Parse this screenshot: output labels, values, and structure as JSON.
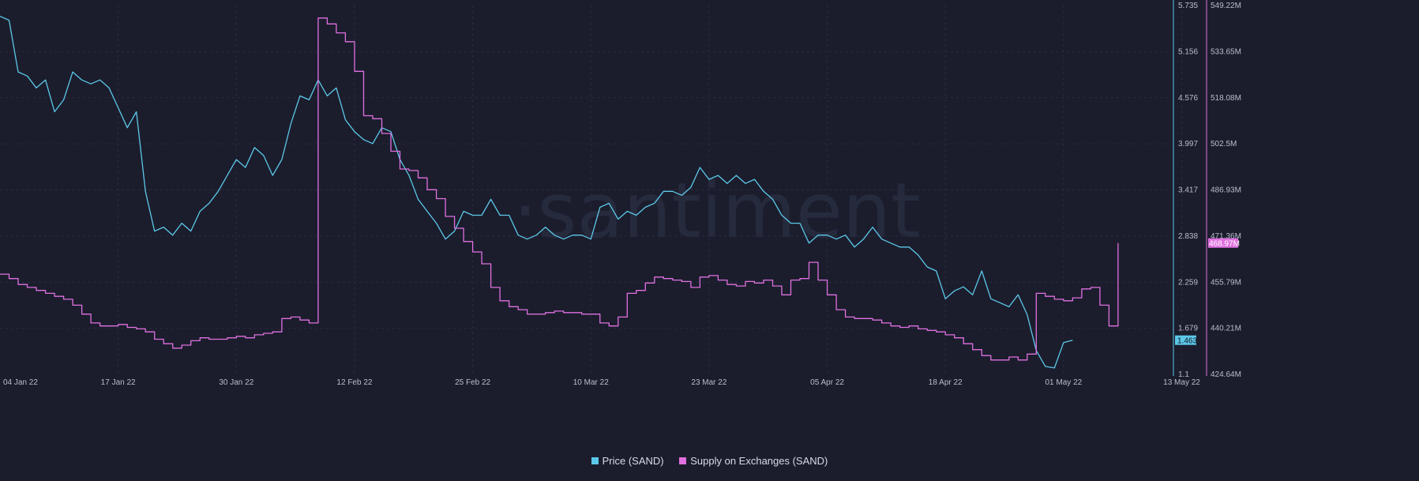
{
  "watermark": "·santiment",
  "colors": {
    "price": "#5cc8e8",
    "supply": "#e070e0",
    "background": "#1b1d2d"
  },
  "legend": {
    "price_label": "Price (SAND)",
    "supply_label": "Supply on Exchanges (SAND)"
  },
  "chart_data": {
    "type": "line",
    "x_ticks": [
      "04 Jan 22",
      "17 Jan 22",
      "30 Jan 22",
      "12 Feb 22",
      "25 Feb 22",
      "10 Mar 22",
      "23 Mar 22",
      "05 Apr 22",
      "18 Apr 22",
      "01 May 22",
      "13 May 22"
    ],
    "y_left_ticks": [
      "5.735",
      "5.156",
      "4.576",
      "3.997",
      "3.417",
      "2.838",
      "2.259",
      "1.679",
      "1.1"
    ],
    "y_right_ticks": [
      "549.22M",
      "533.65M",
      "518.08M",
      "502.5M",
      "486.93M",
      "471.36M",
      "455.79M",
      "440.21M",
      "424.64M"
    ],
    "y_left_range": [
      1.1,
      5.735
    ],
    "y_right_range": [
      424.64,
      549.22
    ],
    "y_right_unit": "M",
    "price_current_label": "1.463",
    "supply_current_label": "468.97M",
    "x_range_days": [
      0,
      129
    ],
    "series": [
      {
        "name": "Price (SAND)",
        "axis": "left",
        "points": [
          [
            0,
            5.6
          ],
          [
            1,
            5.55
          ],
          [
            2,
            4.9
          ],
          [
            3,
            4.85
          ],
          [
            4,
            4.7
          ],
          [
            5,
            4.8
          ],
          [
            6,
            4.4
          ],
          [
            7,
            4.55
          ],
          [
            8,
            4.9
          ],
          [
            9,
            4.8
          ],
          [
            10,
            4.75
          ],
          [
            11,
            4.8
          ],
          [
            12,
            4.7
          ],
          [
            13,
            4.45
          ],
          [
            14,
            4.2
          ],
          [
            15,
            4.4
          ],
          [
            16,
            3.4
          ],
          [
            17,
            2.9
          ],
          [
            18,
            2.95
          ],
          [
            19,
            2.85
          ],
          [
            20,
            3.0
          ],
          [
            21,
            2.9
          ],
          [
            22,
            3.15
          ],
          [
            23,
            3.25
          ],
          [
            24,
            3.4
          ],
          [
            25,
            3.6
          ],
          [
            26,
            3.8
          ],
          [
            27,
            3.7
          ],
          [
            28,
            3.95
          ],
          [
            29,
            3.85
          ],
          [
            30,
            3.6
          ],
          [
            31,
            3.8
          ],
          [
            32,
            4.25
          ],
          [
            33,
            4.6
          ],
          [
            34,
            4.55
          ],
          [
            35,
            4.8
          ],
          [
            36,
            4.6
          ],
          [
            37,
            4.7
          ],
          [
            38,
            4.3
          ],
          [
            39,
            4.15
          ],
          [
            40,
            4.05
          ],
          [
            41,
            4.0
          ],
          [
            42,
            4.2
          ],
          [
            43,
            4.15
          ],
          [
            44,
            3.8
          ],
          [
            45,
            3.6
          ],
          [
            46,
            3.3
          ],
          [
            47,
            3.15
          ],
          [
            48,
            3.0
          ],
          [
            49,
            2.8
          ],
          [
            50,
            2.9
          ],
          [
            51,
            3.15
          ],
          [
            52,
            3.1
          ],
          [
            53,
            3.1
          ],
          [
            54,
            3.3
          ],
          [
            55,
            3.1
          ],
          [
            56,
            3.1
          ],
          [
            57,
            2.85
          ],
          [
            58,
            2.8
          ],
          [
            59,
            2.85
          ],
          [
            60,
            2.95
          ],
          [
            61,
            2.85
          ],
          [
            62,
            2.8
          ],
          [
            63,
            2.85
          ],
          [
            64,
            2.85
          ],
          [
            65,
            2.8
          ],
          [
            66,
            3.2
          ],
          [
            67,
            3.25
          ],
          [
            68,
            3.05
          ],
          [
            69,
            3.15
          ],
          [
            70,
            3.1
          ],
          [
            71,
            3.2
          ],
          [
            72,
            3.25
          ],
          [
            73,
            3.4
          ],
          [
            74,
            3.4
          ],
          [
            75,
            3.35
          ],
          [
            76,
            3.45
          ],
          [
            77,
            3.7
          ],
          [
            78,
            3.55
          ],
          [
            79,
            3.6
          ],
          [
            80,
            3.5
          ],
          [
            81,
            3.6
          ],
          [
            82,
            3.5
          ],
          [
            83,
            3.55
          ],
          [
            84,
            3.4
          ],
          [
            85,
            3.3
          ],
          [
            86,
            3.1
          ],
          [
            87,
            3.0
          ],
          [
            88,
            3.0
          ],
          [
            89,
            2.75
          ],
          [
            90,
            2.85
          ],
          [
            91,
            2.85
          ],
          [
            92,
            2.8
          ],
          [
            93,
            2.85
          ],
          [
            94,
            2.7
          ],
          [
            95,
            2.8
          ],
          [
            96,
            2.95
          ],
          [
            97,
            2.8
          ],
          [
            98,
            2.75
          ],
          [
            99,
            2.7
          ],
          [
            100,
            2.7
          ],
          [
            101,
            2.6
          ],
          [
            102,
            2.45
          ],
          [
            103,
            2.4
          ],
          [
            104,
            2.05
          ],
          [
            105,
            2.15
          ],
          [
            106,
            2.2
          ],
          [
            107,
            2.1
          ],
          [
            108,
            2.4
          ],
          [
            109,
            2.05
          ],
          [
            110,
            2.0
          ],
          [
            111,
            1.95
          ],
          [
            112,
            2.1
          ],
          [
            113,
            1.85
          ],
          [
            114,
            1.4
          ],
          [
            115,
            1.2
          ],
          [
            116,
            1.18
          ],
          [
            117,
            1.5
          ],
          [
            118,
            1.53
          ]
        ]
      },
      {
        "name": "Supply on Exchanges (SAND)",
        "axis": "right",
        "points": [
          [
            0,
            458.5
          ],
          [
            1,
            457.0
          ],
          [
            2,
            455.0
          ],
          [
            3,
            454.0
          ],
          [
            4,
            453.0
          ],
          [
            5,
            452.0
          ],
          [
            6,
            451.0
          ],
          [
            7,
            450.0
          ],
          [
            8,
            448.0
          ],
          [
            9,
            445.0
          ],
          [
            10,
            442.0
          ],
          [
            11,
            441.0
          ],
          [
            12,
            441.0
          ],
          [
            13,
            441.5
          ],
          [
            14,
            440.5
          ],
          [
            15,
            440.0
          ],
          [
            16,
            439.0
          ],
          [
            17,
            436.5
          ],
          [
            18,
            435.0
          ],
          [
            19,
            433.5
          ],
          [
            20,
            434.5
          ],
          [
            21,
            436.0
          ],
          [
            22,
            437.0
          ],
          [
            23,
            436.5
          ],
          [
            24,
            436.5
          ],
          [
            25,
            437.0
          ],
          [
            26,
            437.5
          ],
          [
            27,
            437.0
          ],
          [
            28,
            438.0
          ],
          [
            29,
            438.5
          ],
          [
            30,
            439.0
          ],
          [
            31,
            443.5
          ],
          [
            32,
            444.0
          ],
          [
            33,
            443.0
          ],
          [
            34,
            442.0
          ],
          [
            35,
            545.0
          ],
          [
            36,
            543.0
          ],
          [
            37,
            540.0
          ],
          [
            38,
            537.0
          ],
          [
            39,
            527.0
          ],
          [
            40,
            512.0
          ],
          [
            41,
            511.0
          ],
          [
            42,
            506.0
          ],
          [
            43,
            500.0
          ],
          [
            44,
            494.0
          ],
          [
            45,
            493.5
          ],
          [
            46,
            491.0
          ],
          [
            47,
            487.0
          ],
          [
            48,
            484.0
          ],
          [
            49,
            478.0
          ],
          [
            50,
            474.0
          ],
          [
            51,
            469.5
          ],
          [
            52,
            466.0
          ],
          [
            53,
            462.0
          ],
          [
            54,
            454.0
          ],
          [
            55,
            449.5
          ],
          [
            56,
            447.5
          ],
          [
            57,
            446.5
          ],
          [
            58,
            445.0
          ],
          [
            59,
            445.0
          ],
          [
            60,
            445.5
          ],
          [
            61,
            446.0
          ],
          [
            62,
            445.5
          ],
          [
            63,
            445.5
          ],
          [
            64,
            445.0
          ],
          [
            65,
            445.0
          ],
          [
            66,
            442.0
          ],
          [
            67,
            441.0
          ],
          [
            68,
            444.0
          ],
          [
            69,
            452.0
          ],
          [
            70,
            453.0
          ],
          [
            71,
            455.5
          ],
          [
            72,
            457.5
          ],
          [
            73,
            457.0
          ],
          [
            74,
            456.5
          ],
          [
            75,
            456.0
          ],
          [
            76,
            454.0
          ],
          [
            77,
            457.5
          ],
          [
            78,
            458.0
          ],
          [
            79,
            456.5
          ],
          [
            80,
            455.0
          ],
          [
            81,
            454.5
          ],
          [
            82,
            456.0
          ],
          [
            83,
            455.5
          ],
          [
            84,
            456.5
          ],
          [
            85,
            454.5
          ],
          [
            86,
            451.5
          ],
          [
            87,
            456.5
          ],
          [
            88,
            457.0
          ],
          [
            89,
            462.5
          ],
          [
            90,
            456.5
          ],
          [
            91,
            451.5
          ],
          [
            92,
            446.5
          ],
          [
            93,
            444.0
          ],
          [
            94,
            443.5
          ],
          [
            95,
            443.5
          ],
          [
            96,
            443.0
          ],
          [
            97,
            442.0
          ],
          [
            98,
            441.0
          ],
          [
            99,
            440.5
          ],
          [
            100,
            441.0
          ],
          [
            101,
            440.0
          ],
          [
            102,
            439.5
          ],
          [
            103,
            439.0
          ],
          [
            104,
            438.0
          ],
          [
            105,
            437.0
          ],
          [
            106,
            435.0
          ],
          [
            107,
            433.0
          ],
          [
            108,
            431.0
          ],
          [
            109,
            429.5
          ],
          [
            110,
            429.5
          ],
          [
            111,
            430.5
          ],
          [
            112,
            429.5
          ],
          [
            113,
            431.5
          ],
          [
            114,
            452.0
          ],
          [
            115,
            451.0
          ],
          [
            116,
            450.0
          ],
          [
            117,
            449.5
          ],
          [
            118,
            450.5
          ],
          [
            119,
            453.5
          ],
          [
            120,
            454.0
          ],
          [
            121,
            448.0
          ],
          [
            122,
            441.0
          ],
          [
            123,
            469.0
          ]
        ]
      }
    ]
  }
}
